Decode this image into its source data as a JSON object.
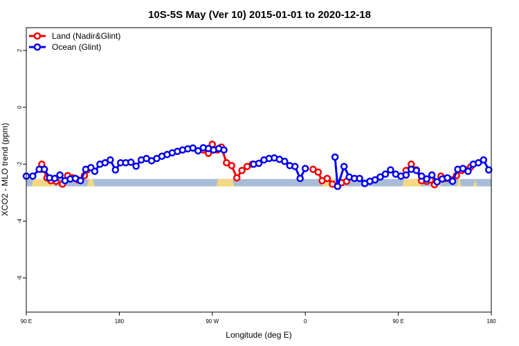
{
  "chart_data": {
    "type": "line",
    "title": "10S-5S May (Ver 10)   2015-01-01 to 2020-12-18",
    "xlabel": "Longitude (deg E)",
    "ylabel": "XCO2 - MLO trend (ppm)",
    "xlim": [
      90,
      450
    ],
    "ylim": [
      -7.2,
      2.8
    ],
    "x_ticks": [
      {
        "value": 90,
        "label": "90 E"
      },
      {
        "value": 162,
        "label": "180"
      },
      {
        "value": 234,
        "label": "90 W"
      },
      {
        "value": 306,
        "label": "0"
      },
      {
        "value": 378,
        "label": "90 E"
      },
      {
        "value": 450,
        "label": "180"
      }
    ],
    "y_ticks": [
      {
        "value": 2,
        "label": "2"
      },
      {
        "value": 0,
        "label": "0"
      },
      {
        "value": -2,
        "label": "-2"
      },
      {
        "value": -4,
        "label": "-4"
      },
      {
        "value": -6,
        "label": "-6"
      }
    ],
    "legend": {
      "position": "top-left"
    },
    "land_ocean_band": {
      "y_range": [
        -2.78,
        -2.52
      ],
      "ocean_color": "#a8bcd8",
      "land_color": "#f5d884",
      "land_segments": [
        [
          94,
          112
        ],
        [
          137,
          143
        ],
        [
          237,
          251
        ],
        [
          319,
          330
        ],
        [
          381,
          396
        ],
        [
          403,
          411
        ],
        [
          423,
          427
        ],
        [
          436,
          439
        ]
      ]
    },
    "series": [
      {
        "name": "Land (Nadir&Glint)",
        "color": "#ee0000",
        "segments": [
          [
            [
              102,
              -2.18
            ],
            [
              104,
              -2.18
            ],
            [
              102,
              -2.0
            ],
            [
              106,
              -2.48
            ],
            [
              109,
              -2.58
            ],
            [
              113,
              -2.6
            ],
            [
              118,
              -2.7
            ],
            [
              122,
              -2.4
            ],
            [
              126,
              -2.48
            ],
            [
              130,
              -2.55
            ],
            [
              135,
              -2.4
            ],
            [
              137,
              -2.2
            ]
          ],
          [
            [
              227,
              -1.5
            ],
            [
              231,
              -1.62
            ],
            [
              234,
              -1.3
            ],
            [
              238,
              -1.5
            ],
            [
              241,
              -1.4
            ],
            [
              245,
              -1.95
            ],
            [
              249,
              -2.05
            ],
            [
              253,
              -2.48
            ],
            [
              257,
              -2.22
            ],
            [
              261,
              -2.08
            ],
            [
              265,
              -2.0
            ]
          ],
          [
            [
              312,
              -2.18
            ],
            [
              316,
              -2.28
            ],
            [
              319,
              -2.58
            ],
            [
              323,
              -2.5
            ],
            [
              327,
              -2.7
            ],
            [
              331,
              -2.78
            ],
            [
              334,
              -2.65
            ],
            [
              338,
              -2.6
            ]
          ],
          [
            [
              384,
              -2.22
            ],
            [
              388,
              -2.0
            ],
            [
              392,
              -2.2
            ],
            [
              396,
              -2.58
            ],
            [
              400,
              -2.6
            ],
            [
              403,
              -2.55
            ],
            [
              406,
              -2.72
            ],
            [
              411,
              -2.42
            ],
            [
              415,
              -2.5
            ],
            [
              419,
              -2.55
            ],
            [
              423,
              -2.4
            ],
            [
              427,
              -2.22
            ],
            [
              431,
              -2.2
            ],
            [
              434,
              -2.1
            ]
          ]
        ]
      },
      {
        "name": "Ocean (Glint)",
        "color": "#0000ee",
        "segments": [
          [
            [
              90,
              -2.42
            ],
            [
              95,
              -2.42
            ],
            [
              100,
              -2.18
            ],
            [
              104,
              -2.18
            ],
            [
              108,
              -2.48
            ],
            [
              112,
              -2.5
            ],
            [
              116,
              -2.38
            ],
            [
              120,
              -2.58
            ],
            [
              124,
              -2.52
            ],
            [
              128,
              -2.5
            ],
            [
              132,
              -2.58
            ],
            [
              136,
              -2.18
            ],
            [
              140,
              -2.12
            ],
            [
              143,
              -2.25
            ],
            [
              147,
              -2.0
            ],
            [
              151,
              -1.95
            ],
            [
              155,
              -1.85
            ],
            [
              159,
              -2.2
            ],
            [
              163,
              -1.95
            ],
            [
              167,
              -1.95
            ],
            [
              171,
              -1.93
            ],
            [
              175,
              -2.07
            ],
            [
              179,
              -1.85
            ],
            [
              183,
              -1.8
            ],
            [
              187,
              -1.88
            ],
            [
              191,
              -1.8
            ],
            [
              195,
              -1.72
            ],
            [
              199,
              -1.66
            ],
            [
              203,
              -1.6
            ],
            [
              207,
              -1.55
            ],
            [
              211,
              -1.5
            ],
            [
              215,
              -1.46
            ],
            [
              219,
              -1.43
            ],
            [
              223,
              -1.53
            ],
            [
              227,
              -1.42
            ],
            [
              231,
              -1.45
            ],
            [
              235,
              -1.5
            ],
            [
              239,
              -1.45
            ],
            [
              243,
              -1.5
            ]
          ],
          [
            [
              266,
              -2.0
            ],
            [
              270,
              -1.97
            ],
            [
              274,
              -1.85
            ],
            [
              278,
              -1.8
            ],
            [
              282,
              -1.78
            ],
            [
              286,
              -1.83
            ],
            [
              290,
              -1.9
            ],
            [
              294,
              -2.05
            ],
            [
              298,
              -2.08
            ],
            [
              302,
              -2.5
            ],
            [
              306,
              -2.15
            ]
          ],
          [
            [
              329,
              -1.75
            ],
            [
              331,
              -2.78
            ],
            [
              336,
              -2.08
            ],
            [
              340,
              -2.45
            ],
            [
              344,
              -2.5
            ],
            [
              348,
              -2.5
            ],
            [
              352,
              -2.68
            ],
            [
              356,
              -2.6
            ],
            [
              360,
              -2.55
            ],
            [
              364,
              -2.45
            ],
            [
              368,
              -2.35
            ],
            [
              372,
              -2.2
            ],
            [
              376,
              -2.35
            ],
            [
              380,
              -2.42
            ],
            [
              384,
              -2.38
            ],
            [
              388,
              -2.18
            ],
            [
              392,
              -2.22
            ],
            [
              396,
              -2.42
            ],
            [
              400,
              -2.52
            ],
            [
              404,
              -2.38
            ],
            [
              408,
              -2.62
            ],
            [
              412,
              -2.52
            ],
            [
              416,
              -2.48
            ],
            [
              420,
              -2.6
            ],
            [
              424,
              -2.18
            ],
            [
              428,
              -2.15
            ],
            [
              432,
              -2.25
            ],
            [
              436,
              -2.0
            ],
            [
              440,
              -1.95
            ],
            [
              444,
              -1.85
            ],
            [
              448,
              -2.2
            ]
          ]
        ]
      }
    ]
  }
}
